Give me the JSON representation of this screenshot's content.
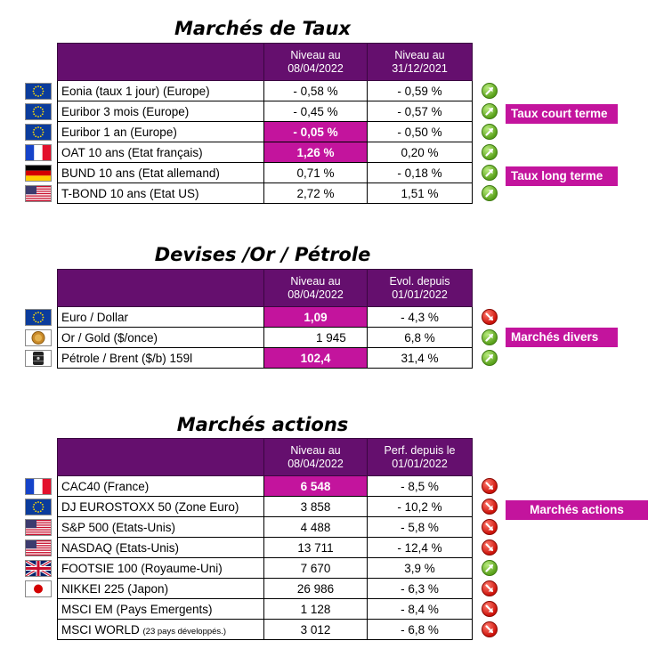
{
  "taux": {
    "title": "Marchés de Taux",
    "header": {
      "col2": "Niveau au 08/04/2022",
      "col3": "Niveau au 31/12/2021"
    },
    "rows": [
      {
        "name": "Eonia (taux 1 jour) (Europe)",
        "v1": "- 0,58 %",
        "v2": "- 0,59 %",
        "flag": "eu-flag-icon",
        "trend": "up"
      },
      {
        "name": "Euribor 3 mois (Europe)",
        "v1": "- 0,45 %",
        "v2": "- 0,57 %",
        "flag": "eu-flag-icon",
        "trend": "up"
      },
      {
        "name": "Euribor 1 an (Europe)",
        "v1": "- 0,05 %",
        "v2": "- 0,50 %",
        "flag": "eu-flag-icon",
        "trend": "up",
        "highlight": true
      },
      {
        "name": "OAT 10 ans (Etat français)",
        "v1": "1,26 %",
        "v2": "0,20 %",
        "flag": "france-flag-icon",
        "trend": "up",
        "highlight": true
      },
      {
        "name": "BUND 10 ans (Etat allemand)",
        "v1": "0,71 %",
        "v2": "- 0,18 %",
        "flag": "germany-flag-icon",
        "trend": "up"
      },
      {
        "name": "T-BOND 10 ans (Etat US)",
        "v1": "2,72 %",
        "v2": "1,51 %",
        "flag": "usa-flag-icon",
        "trend": "up"
      }
    ],
    "tag_short": "Taux court terme",
    "tag_long": "Taux long terme"
  },
  "devises": {
    "title": "Devises /Or / Pétrole",
    "header": {
      "col2": "Niveau au 08/04/2022",
      "col3": "Evol. depuis 01/01/2022"
    },
    "rows": [
      {
        "name": "Euro / Dollar",
        "v1": "1,09",
        "v2": "- 4,3 %",
        "icon": "eu-flag-icon",
        "trend": "down",
        "highlight": true
      },
      {
        "name": "Or / Gold ($/once)",
        "v1": "1 945",
        "v2": "6,8 %",
        "icon": "gold-coin-icon",
        "trend": "up"
      },
      {
        "name": "Pétrole / Brent ($/b) 159l",
        "v1": "102,4",
        "v2": "31,4 %",
        "icon": "oil-barrel-icon",
        "trend": "up",
        "highlight": true
      }
    ],
    "tag": "Marchés divers"
  },
  "actions": {
    "title": "Marchés actions",
    "header": {
      "col2": "Niveau au 08/04/2022",
      "col3": "Perf. depuis le 01/01/2022"
    },
    "rows": [
      {
        "name": "CAC40 (France)",
        "v1": "6 548",
        "v2": "- 8,5 %",
        "flag": "france-flag-icon",
        "trend": "down",
        "highlight": true
      },
      {
        "name": "DJ EUROSTOXX 50 (Zone Euro)",
        "v1": "3 858",
        "v2": "- 10,2 %",
        "flag": "eu-flag-icon",
        "trend": "down"
      },
      {
        "name": "S&P 500 (Etats-Unis)",
        "v1": "4 488",
        "v2": "- 5,8 %",
        "flag": "usa-flag-icon",
        "trend": "down"
      },
      {
        "name": "NASDAQ (Etats-Unis)",
        "v1": "13 711",
        "v2": "- 12,4 %",
        "flag": "usa-flag-icon",
        "trend": "down"
      },
      {
        "name": "FOOTSIE 100 (Royaume-Uni)",
        "v1": "7 670",
        "v2": "3,9 %",
        "flag": "uk-flag-icon",
        "trend": "up"
      },
      {
        "name": "NIKKEI 225 (Japon)",
        "v1": "26 986",
        "v2": "- 6,3 %",
        "flag": "japan-flag-icon",
        "trend": "down"
      },
      {
        "name": "MSCI EM (Pays Emergents)",
        "v1": "1 128",
        "v2": "- 8,4 %",
        "flag": "",
        "trend": "down"
      },
      {
        "name": "MSCI WORLD",
        "name_small": "(23 pays développés.)",
        "v1": "3 012",
        "v2": "- 6,8 %",
        "flag": "",
        "trend": "down"
      }
    ],
    "tag": "Marchés actions"
  },
  "colors": {
    "header_purple": "#650f6e",
    "highlight_magenta": "#c3149d",
    "up_green": "#5aa11b",
    "down_red": "#cc120a"
  }
}
